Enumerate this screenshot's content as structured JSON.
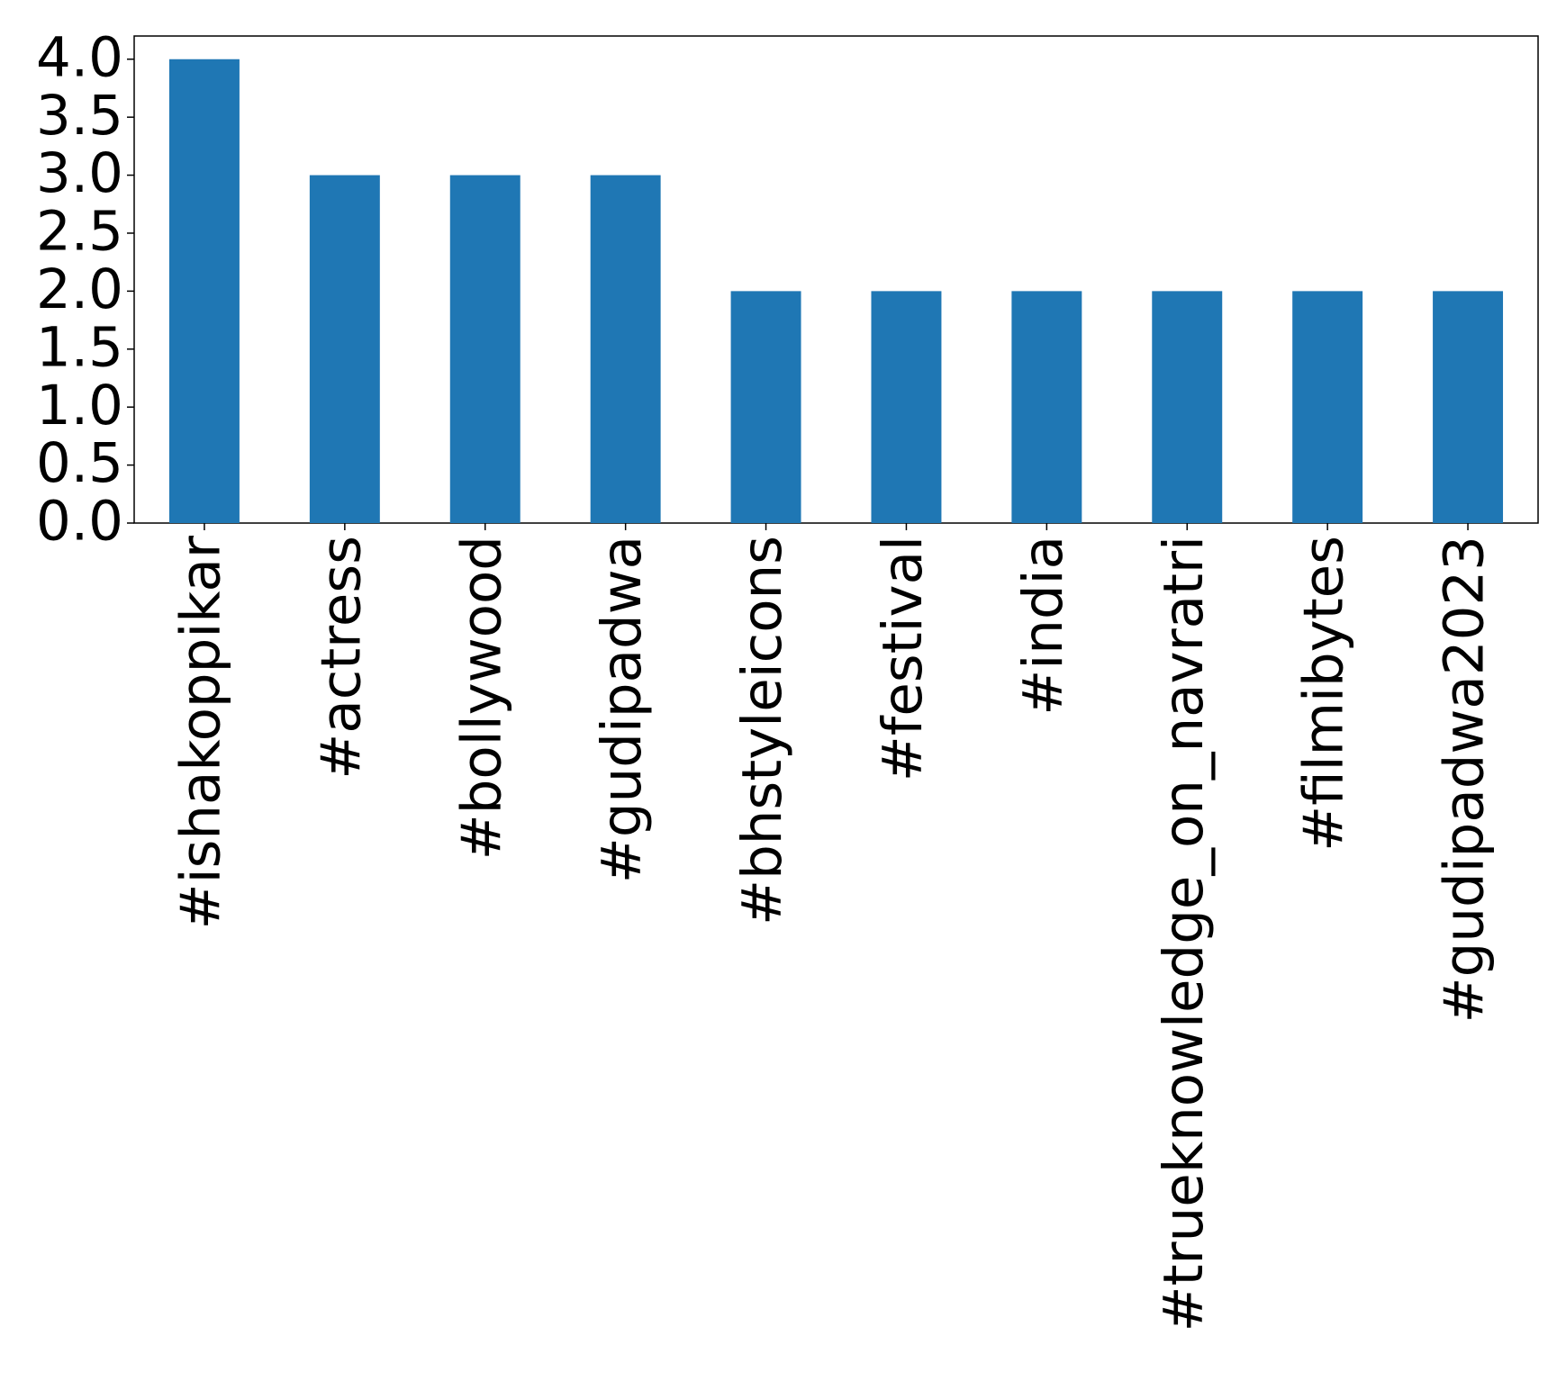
{
  "chart_data": {
    "type": "bar",
    "categories": [
      "#ishakoppikar",
      "#actress",
      "#bollywood",
      "#gudipadwa",
      "#bhstyleicons",
      "#festival",
      "#india",
      "#trueknowledge_on_navratri",
      "#filmibytes",
      "#gudipadwa2023"
    ],
    "values": [
      4,
      3,
      3,
      3,
      2,
      2,
      2,
      2,
      2,
      2
    ],
    "color": "#1f77b4",
    "ylim": [
      0,
      4.2
    ],
    "yticks": [
      {
        "value": 0,
        "label": "0.0"
      },
      0.5,
      {
        "value": 1,
        "label": "1.0"
      },
      1.5,
      {
        "value": 2,
        "label": "2.0"
      },
      2.5,
      {
        "value": 3,
        "label": "3.0"
      },
      3.5,
      {
        "value": 4,
        "label": "4.0"
      }
    ],
    "grid": false
  }
}
